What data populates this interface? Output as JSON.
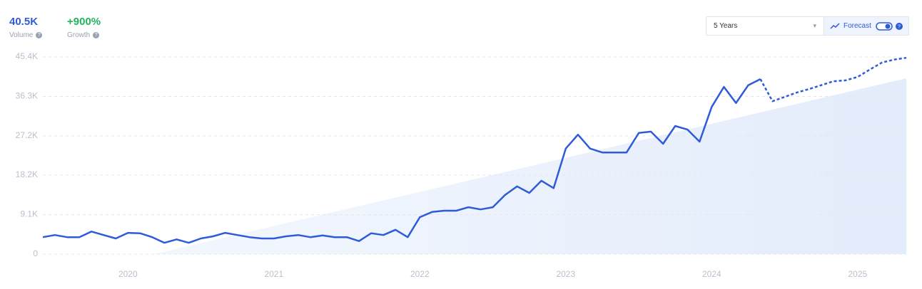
{
  "header": {
    "volume": {
      "value": "40.5K",
      "label": "Volume"
    },
    "growth": {
      "value": "+900%",
      "label": "Growth"
    }
  },
  "controls": {
    "range": "5 Years",
    "forecast": "Forecast"
  },
  "chart_data": {
    "type": "line",
    "categories": [
      null,
      null,
      null,
      null,
      null,
      null,
      null,
      "2020",
      null,
      null,
      null,
      null,
      null,
      null,
      null,
      null,
      null,
      null,
      null,
      "2021",
      null,
      null,
      null,
      null,
      null,
      null,
      null,
      null,
      null,
      null,
      null,
      "2022",
      null,
      null,
      null,
      null,
      null,
      null,
      null,
      null,
      null,
      null,
      null,
      "2023",
      null,
      null,
      null,
      null,
      null,
      null,
      null,
      null,
      null,
      null,
      null,
      "2024",
      null,
      null,
      null,
      null,
      null,
      null,
      null,
      null,
      null,
      null,
      null,
      "2025",
      null,
      null,
      null,
      null
    ],
    "series": [
      {
        "name": "Volume",
        "color": "#2f5bd8",
        "dashed": false,
        "values": [
          3900,
          4400,
          3900,
          3900,
          5200,
          4400,
          3600,
          4900,
          4800,
          3900,
          2600,
          3400,
          2600,
          3600,
          4100,
          4900,
          4400,
          3900,
          3600,
          3600,
          4100,
          4400,
          3900,
          4300,
          3900,
          3900,
          3000,
          4800,
          4400,
          5600,
          3900,
          8500,
          9700,
          10000,
          10000,
          10800,
          10300,
          10800,
          13600,
          15600,
          14100,
          16900,
          15200,
          24300,
          27500,
          24300,
          23400,
          23400,
          23400,
          27900,
          28200,
          25400,
          29500,
          28700,
          25900,
          33900,
          38500,
          34800,
          38900,
          40300,
          null,
          null,
          null,
          null,
          null,
          null,
          null,
          null,
          null,
          null,
          null,
          null
        ]
      },
      {
        "name": "Forecast",
        "color": "#2f5bd8",
        "dashed": true,
        "values": [
          null,
          null,
          null,
          null,
          null,
          null,
          null,
          null,
          null,
          null,
          null,
          null,
          null,
          null,
          null,
          null,
          null,
          null,
          null,
          null,
          null,
          null,
          null,
          null,
          null,
          null,
          null,
          null,
          null,
          null,
          null,
          null,
          null,
          null,
          null,
          null,
          null,
          null,
          null,
          null,
          null,
          null,
          null,
          null,
          null,
          null,
          null,
          null,
          null,
          null,
          null,
          null,
          null,
          null,
          null,
          null,
          null,
          null,
          null,
          40300,
          35200,
          36200,
          37200,
          38000,
          38900,
          39800,
          40000,
          40800,
          42500,
          44100,
          44800,
          45200
        ]
      }
    ],
    "ylim": [
      0,
      45400
    ],
    "yticks": [
      0,
      {
        "value": 9100,
        "label": "9.1K"
      },
      {
        "value": 18200,
        "label": "18.2K"
      },
      {
        "value": 27200,
        "label": "27.2K"
      },
      {
        "value": 36300,
        "label": "36.3K"
      },
      {
        "value": 45400,
        "label": "45.4K"
      }
    ],
    "grid": true
  }
}
